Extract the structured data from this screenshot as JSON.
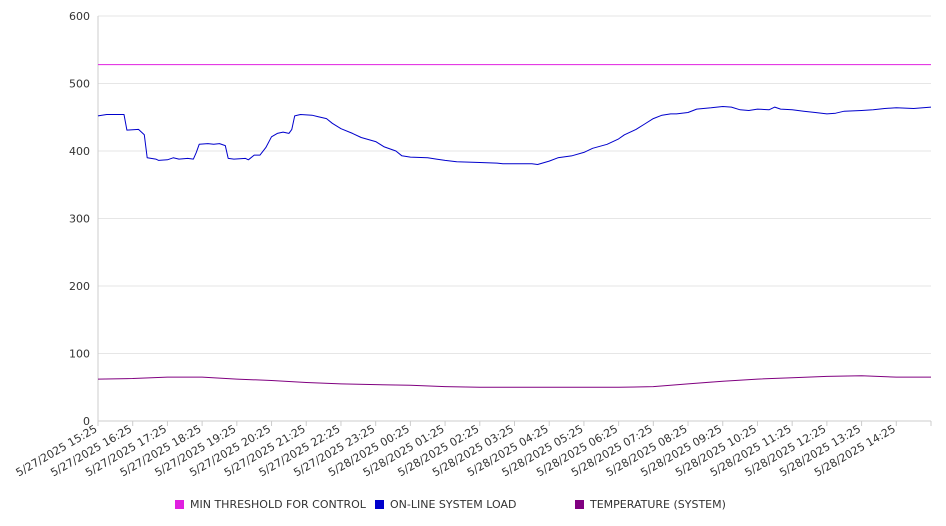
{
  "chart_data": {
    "type": "line",
    "title": "",
    "xlabel": "",
    "ylabel": "",
    "ylim": [
      0,
      600
    ],
    "yticks": [
      0,
      100,
      200,
      300,
      400,
      500,
      600
    ],
    "grid": "horizontal",
    "legend_position": "bottom",
    "x_tick_labels": [
      "5/27/2025 15:25",
      "5/27/2025 16:25",
      "5/27/2025 17:25",
      "5/27/2025 18:25",
      "5/27/2025 19:25",
      "5/27/2025 20:25",
      "5/27/2025 21:25",
      "5/27/2025 22:25",
      "5/27/2025 23:25",
      "5/28/2025 00:25",
      "5/28/2025 01:25",
      "5/28/2025 02:25",
      "5/28/2025 03:25",
      "5/28/2025 04:25",
      "5/28/2025 05:25",
      "5/28/2025 06:25",
      "5/28/2025 07:25",
      "5/28/2025 08:25",
      "5/28/2025 09:25",
      "5/28/2025 10:25",
      "5/28/2025 11:25",
      "5/28/2025 12:25",
      "5/28/2025 13:25",
      "5/28/2025 14:25"
    ],
    "x_range": [
      "5/27/2025 15:25",
      "5/28/2025 15:25"
    ],
    "series": [
      {
        "name": "MIN THRESHOLD FOR CONTROL",
        "color": "#e020e0",
        "points": [
          [
            "5/27/2025 15:25",
            528
          ],
          [
            "5/28/2025 15:25",
            528
          ]
        ]
      },
      {
        "name": "ON-LINE SYSTEM LOAD",
        "color": "#0000cc",
        "points": [
          [
            "5/27/2025 15:25",
            452
          ],
          [
            "5/27/2025 15:40",
            454
          ],
          [
            "5/27/2025 16:10",
            454
          ],
          [
            "5/27/2025 16:15",
            431
          ],
          [
            "5/27/2025 16:35",
            432
          ],
          [
            "5/27/2025 16:45",
            424
          ],
          [
            "5/27/2025 16:50",
            390
          ],
          [
            "5/27/2025 17:05",
            388
          ],
          [
            "5/27/2025 17:10",
            386
          ],
          [
            "5/27/2025 17:25",
            387
          ],
          [
            "5/27/2025 17:35",
            390
          ],
          [
            "5/27/2025 17:45",
            388
          ],
          [
            "5/27/2025 18:00",
            389
          ],
          [
            "5/27/2025 18:10",
            388
          ],
          [
            "5/27/2025 18:15",
            398
          ],
          [
            "5/27/2025 18:20",
            410
          ],
          [
            "5/27/2025 18:35",
            411
          ],
          [
            "5/27/2025 18:45",
            410
          ],
          [
            "5/27/2025 18:55",
            411
          ],
          [
            "5/27/2025 19:05",
            408
          ],
          [
            "5/27/2025 19:10",
            389
          ],
          [
            "5/27/2025 19:20",
            388
          ],
          [
            "5/27/2025 19:40",
            389
          ],
          [
            "5/27/2025 19:45",
            387
          ],
          [
            "5/27/2025 19:55",
            394
          ],
          [
            "5/27/2025 20:05",
            394
          ],
          [
            "5/27/2025 20:15",
            405
          ],
          [
            "5/27/2025 20:25",
            421
          ],
          [
            "5/27/2025 20:35",
            426
          ],
          [
            "5/27/2025 20:45",
            428
          ],
          [
            "5/27/2025 20:55",
            426
          ],
          [
            "5/27/2025 21:00",
            432
          ],
          [
            "5/27/2025 21:05",
            452
          ],
          [
            "5/27/2025 21:15",
            454
          ],
          [
            "5/27/2025 21:35",
            453
          ],
          [
            "5/27/2025 21:45",
            451
          ],
          [
            "5/27/2025 22:00",
            448
          ],
          [
            "5/27/2025 22:10",
            441
          ],
          [
            "5/27/2025 22:25",
            433
          ],
          [
            "5/27/2025 22:45",
            426
          ],
          [
            "5/27/2025 23:00",
            420
          ],
          [
            "5/27/2025 23:25",
            414
          ],
          [
            "5/27/2025 23:40",
            406
          ],
          [
            "5/28/2025 00:00",
            400
          ],
          [
            "5/28/2025 00:10",
            393
          ],
          [
            "5/28/2025 00:25",
            391
          ],
          [
            "5/28/2025 00:55",
            390
          ],
          [
            "5/28/2025 01:10",
            388
          ],
          [
            "5/28/2025 01:25",
            386
          ],
          [
            "5/28/2025 01:45",
            384
          ],
          [
            "5/28/2025 02:25",
            383
          ],
          [
            "5/28/2025 02:55",
            382
          ],
          [
            "5/28/2025 03:05",
            381
          ],
          [
            "5/28/2025 03:25",
            381
          ],
          [
            "5/28/2025 03:55",
            381
          ],
          [
            "5/28/2025 04:05",
            380
          ],
          [
            "5/28/2025 04:25",
            385
          ],
          [
            "5/28/2025 04:40",
            390
          ],
          [
            "5/28/2025 05:05",
            393
          ],
          [
            "5/28/2025 05:25",
            398
          ],
          [
            "5/28/2025 05:40",
            404
          ],
          [
            "5/28/2025 06:05",
            410
          ],
          [
            "5/28/2025 06:25",
            418
          ],
          [
            "5/28/2025 06:35",
            424
          ],
          [
            "5/28/2025 06:55",
            432
          ],
          [
            "5/28/2025 07:10",
            440
          ],
          [
            "5/28/2025 07:25",
            448
          ],
          [
            "5/28/2025 07:40",
            453
          ],
          [
            "5/28/2025 07:55",
            455
          ],
          [
            "5/28/2025 08:05",
            455
          ],
          [
            "5/28/2025 08:25",
            457
          ],
          [
            "5/28/2025 08:40",
            462
          ],
          [
            "5/28/2025 09:05",
            464
          ],
          [
            "5/28/2025 09:25",
            466
          ],
          [
            "5/28/2025 09:40",
            465
          ],
          [
            "5/28/2025 09:55",
            461
          ],
          [
            "5/28/2025 10:10",
            460
          ],
          [
            "5/28/2025 10:25",
            462
          ],
          [
            "5/28/2025 10:45",
            461
          ],
          [
            "5/28/2025 10:55",
            465
          ],
          [
            "5/28/2025 11:05",
            462
          ],
          [
            "5/28/2025 11:25",
            461
          ],
          [
            "5/28/2025 11:45",
            459
          ],
          [
            "5/28/2025 12:05",
            457
          ],
          [
            "5/28/2025 12:25",
            455
          ],
          [
            "5/28/2025 12:40",
            456
          ],
          [
            "5/28/2025 12:55",
            459
          ],
          [
            "5/28/2025 13:25",
            460
          ],
          [
            "5/28/2025 13:45",
            461
          ],
          [
            "5/28/2025 14:05",
            463
          ],
          [
            "5/28/2025 14:25",
            464
          ],
          [
            "5/28/2025 14:55",
            463
          ],
          [
            "5/28/2025 15:25",
            465
          ]
        ]
      },
      {
        "name": "TEMPERATURE (SYSTEM)",
        "color": "#800080",
        "points": [
          [
            "5/27/2025 15:25",
            62
          ],
          [
            "5/27/2025 16:25",
            63
          ],
          [
            "5/27/2025 17:25",
            65
          ],
          [
            "5/27/2025 18:25",
            65
          ],
          [
            "5/27/2025 19:25",
            62
          ],
          [
            "5/27/2025 20:25",
            60
          ],
          [
            "5/27/2025 21:25",
            57
          ],
          [
            "5/27/2025 22:25",
            55
          ],
          [
            "5/27/2025 23:25",
            54
          ],
          [
            "5/28/2025 00:25",
            53
          ],
          [
            "5/28/2025 01:25",
            51
          ],
          [
            "5/28/2025 02:25",
            50
          ],
          [
            "5/28/2025 03:25",
            50
          ],
          [
            "5/28/2025 04:25",
            50
          ],
          [
            "5/28/2025 05:25",
            50
          ],
          [
            "5/28/2025 06:25",
            50
          ],
          [
            "5/28/2025 07:25",
            51
          ],
          [
            "5/28/2025 08:25",
            55
          ],
          [
            "5/28/2025 09:25",
            59
          ],
          [
            "5/28/2025 10:25",
            62
          ],
          [
            "5/28/2025 11:25",
            64
          ],
          [
            "5/28/2025 12:25",
            66
          ],
          [
            "5/28/2025 13:25",
            67
          ],
          [
            "5/28/2025 14:25",
            65
          ],
          [
            "5/28/2025 15:25",
            65
          ]
        ]
      }
    ]
  }
}
